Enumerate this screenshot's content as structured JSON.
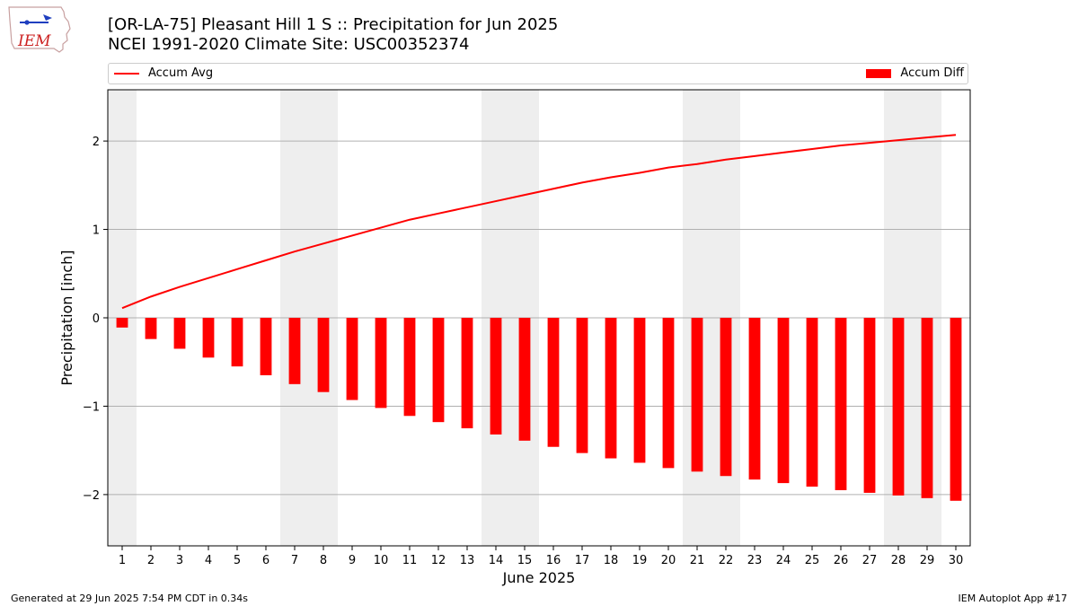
{
  "logo": {
    "text": "IEM"
  },
  "chart_data": {
    "type": "bar",
    "title": "[OR-LA-75] Pleasant Hill 1 S :: Precipitation for Jun 2025",
    "subtitle": "NCEI 1991-2020 Climate Site: USC00352374",
    "xlabel": "June 2025",
    "ylabel": "Precipitation [inch]",
    "ylim": [
      -2.58,
      2.58
    ],
    "yticks": [
      -2,
      -1,
      0,
      1,
      2
    ],
    "ytick_labels": [
      "−2",
      "−1",
      "0",
      "1",
      "2"
    ],
    "xlim": [
      0.5,
      30.5
    ],
    "grid": "horizontal",
    "legend_placement": "top",
    "weekend_shading": [
      [
        0.5,
        1.5
      ],
      [
        6.5,
        8.5
      ],
      [
        13.5,
        15.5
      ],
      [
        20.5,
        22.5
      ],
      [
        27.5,
        29.5
      ]
    ],
    "x": [
      1,
      2,
      3,
      4,
      5,
      6,
      7,
      8,
      9,
      10,
      11,
      12,
      13,
      14,
      15,
      16,
      17,
      18,
      19,
      20,
      21,
      22,
      23,
      24,
      25,
      26,
      27,
      28,
      29,
      30
    ],
    "series": [
      {
        "name": "Accum Avg",
        "kind": "line",
        "color": "#ff0000",
        "values": [
          0.11,
          0.24,
          0.35,
          0.45,
          0.55,
          0.65,
          0.75,
          0.84,
          0.93,
          1.02,
          1.11,
          1.18,
          1.25,
          1.32,
          1.39,
          1.46,
          1.53,
          1.59,
          1.64,
          1.7,
          1.74,
          1.79,
          1.83,
          1.87,
          1.91,
          1.95,
          1.98,
          2.01,
          2.04,
          2.07
        ]
      },
      {
        "name": "Accum Diff",
        "kind": "bar",
        "color": "#ff0000",
        "values": [
          -0.11,
          -0.24,
          -0.35,
          -0.45,
          -0.55,
          -0.65,
          -0.75,
          -0.84,
          -0.93,
          -1.02,
          -1.11,
          -1.18,
          -1.25,
          -1.32,
          -1.39,
          -1.46,
          -1.53,
          -1.59,
          -1.64,
          -1.7,
          -1.74,
          -1.79,
          -1.83,
          -1.87,
          -1.91,
          -1.95,
          -1.98,
          -2.01,
          -2.04,
          -2.07
        ]
      }
    ]
  },
  "footer": {
    "left": "Generated at 29 Jun 2025 7:54 PM CDT in 0.34s",
    "right": "IEM Autoplot App #17"
  },
  "colors": {
    "accent": "#ff0000",
    "weekend": "#eeeeee",
    "grid": "#b0b0b0"
  }
}
